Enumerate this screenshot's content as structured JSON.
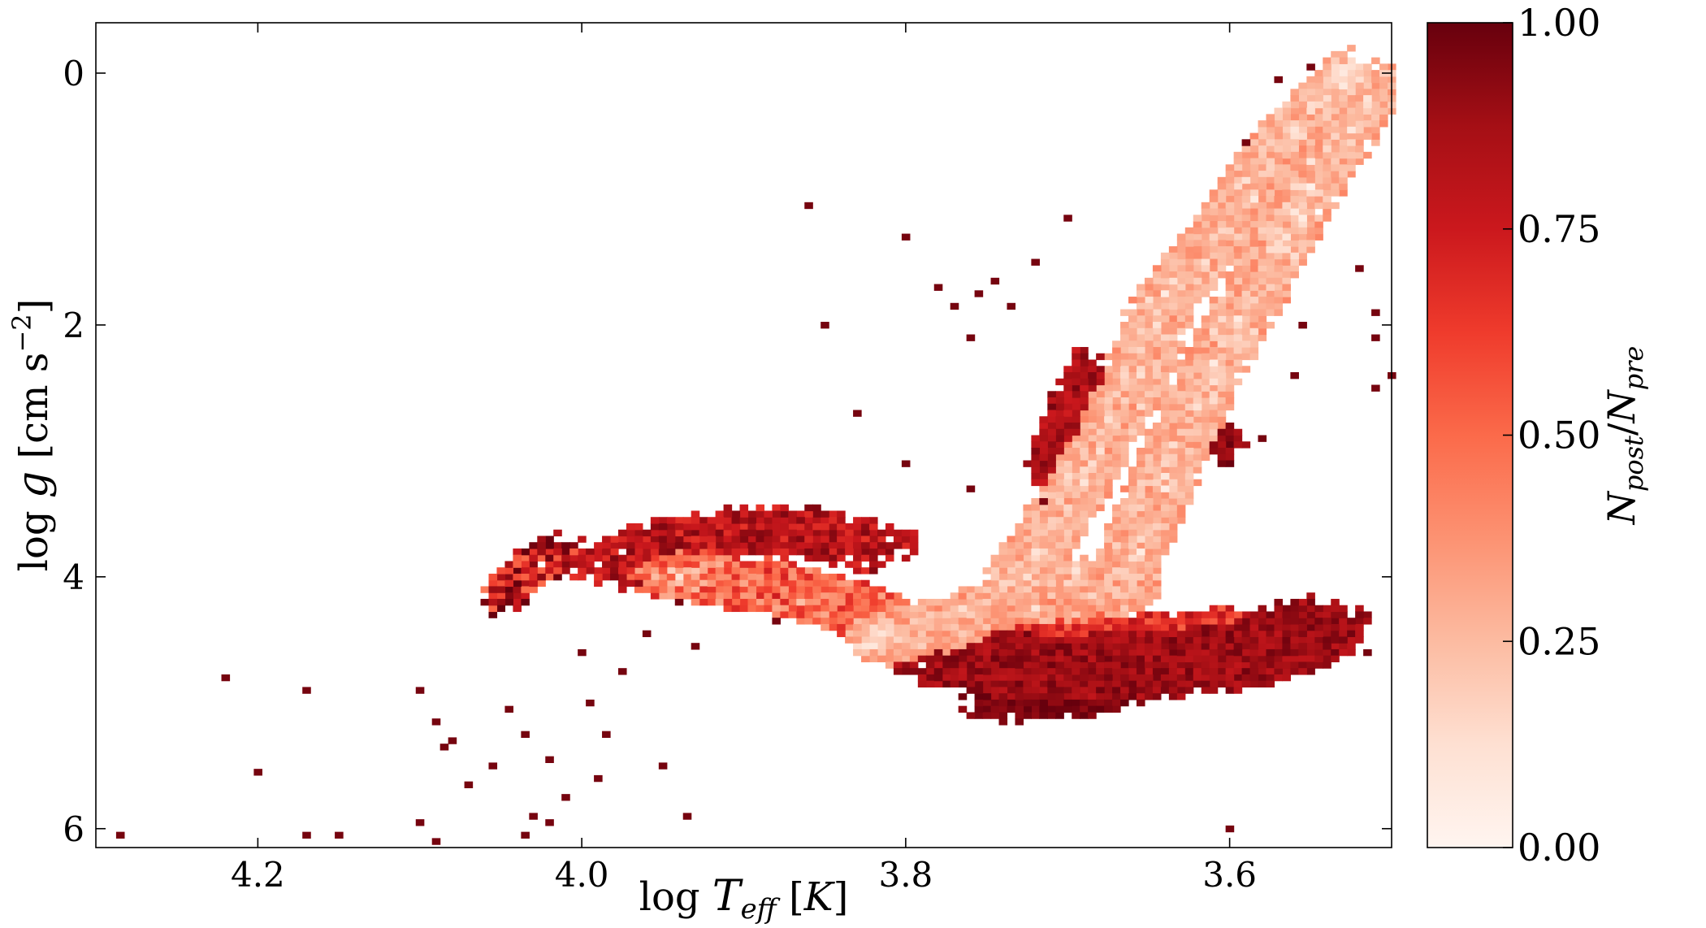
{
  "chart_data": {
    "type": "heatmap",
    "title": "",
    "xlabel_parts": [
      "log ",
      "T",
      "eff",
      " [",
      "K",
      "]"
    ],
    "ylabel_parts": [
      "log ",
      "g",
      " [cm  s",
      "−2",
      "]"
    ],
    "colorbar_label_parts": [
      "N",
      "post",
      "/",
      "N",
      "pre"
    ],
    "x_axis": {
      "range": [
        4.3,
        3.5
      ],
      "inverted": true,
      "ticks": [
        4.2,
        4.0,
        3.8,
        3.6
      ],
      "tick_labels": [
        "4.2",
        "4.0",
        "3.8",
        "3.6"
      ]
    },
    "y_axis": {
      "range": [
        -0.4,
        6.15
      ],
      "inverted": true,
      "ticks": [
        0,
        2,
        4,
        6
      ],
      "tick_labels": [
        "0",
        "2",
        "4",
        "6"
      ]
    },
    "colorbar": {
      "range": [
        0.0,
        1.0
      ],
      "ticks": [
        0.0,
        0.25,
        0.5,
        0.75,
        1.0
      ],
      "tick_labels": [
        "0.00",
        "0.25",
        "0.50",
        "0.75",
        "1.00"
      ],
      "colormap": [
        "#fff5f0",
        "#fee0d2",
        "#fcbba1",
        "#fc9272",
        "#fb6a4a",
        "#ef3b2c",
        "#cb181d",
        "#a50f15",
        "#67000d"
      ]
    },
    "grid": false,
    "bin_size": {
      "log_teff": 0.005,
      "log_g": 0.05
    },
    "regions": [
      {
        "name": "",
        "path": [
          [
            3.525,
            0.0
          ],
          [
            3.565,
            0.5
          ],
          [
            3.6,
            1.2
          ],
          [
            3.64,
            1.8
          ],
          [
            3.66,
            2.5
          ],
          [
            3.69,
            3.2
          ],
          [
            3.71,
            3.6
          ],
          [
            3.73,
            4.0
          ],
          [
            3.67,
            4.05
          ],
          [
            3.65,
            3.5
          ],
          [
            3.62,
            2.6
          ],
          [
            3.58,
            1.6
          ],
          [
            3.55,
            0.9
          ],
          [
            3.51,
            0.1
          ]
        ],
        "width": [
          0.02,
          0.2
        ],
        "value_mean": 0.08,
        "value_spread": 0.09,
        "density": 0.8
      },
      {
        "name": "",
        "path": [
          [
            3.82,
            4.5
          ],
          [
            3.78,
            4.4
          ],
          [
            3.74,
            4.2
          ],
          [
            3.7,
            4.15
          ],
          [
            3.67,
            4.1
          ],
          [
            3.66,
            4.05
          ]
        ],
        "width": [
          0.02,
          0.16
        ],
        "value_mean": 0.1,
        "value_spread": 0.1,
        "density": 0.9
      },
      {
        "name": "",
        "path": [
          [
            3.94,
            4.0
          ],
          [
            3.88,
            4.08
          ],
          [
            3.83,
            4.25
          ],
          [
            3.81,
            4.4
          ]
        ],
        "width": [
          0.03,
          0.2
        ],
        "value_mean": 0.3,
        "value_spread": 0.2,
        "density": 0.85
      },
      {
        "name": "",
        "path": [
          [
            3.98,
            3.9
          ],
          [
            3.94,
            3.7
          ],
          [
            3.9,
            3.65
          ],
          [
            3.86,
            3.65
          ],
          [
            3.82,
            3.75
          ]
        ],
        "width": [
          0.03,
          0.2
        ],
        "value_mean": 0.8,
        "value_spread": 0.15,
        "density": 0.5
      },
      {
        "name": "",
        "path": [
          [
            3.69,
            2.4
          ],
          [
            3.7,
            2.8
          ],
          [
            3.71,
            3.1
          ],
          [
            3.7,
            3.4
          ]
        ],
        "width": [
          0.015,
          0.22
        ],
        "value_mean": 0.85,
        "value_spread": 0.12,
        "density": 0.55
      },
      {
        "name": "",
        "path": [
          [
            3.77,
            4.65
          ],
          [
            3.72,
            4.7
          ],
          [
            3.66,
            4.7
          ],
          [
            3.6,
            4.65
          ],
          [
            3.57,
            4.55
          ],
          [
            3.55,
            4.4
          ]
        ],
        "width": [
          0.04,
          0.25
        ],
        "value_mean": 0.88,
        "value_spread": 0.1,
        "density": 0.9
      },
      {
        "name": "",
        "path": [
          [
            3.8,
            4.55
          ],
          [
            3.74,
            4.45
          ],
          [
            3.68,
            4.4
          ],
          [
            3.63,
            4.4
          ],
          [
            3.59,
            4.35
          ]
        ],
        "width": [
          0.025,
          0.1
        ],
        "value_mean": 0.68,
        "value_spread": 0.16,
        "density": 0.9
      },
      {
        "name": "",
        "path": [
          [
            3.74,
            5.0
          ],
          [
            3.7,
            4.95
          ],
          [
            3.67,
            4.9
          ]
        ],
        "width": [
          0.03,
          0.12
        ],
        "value_mean": 0.96,
        "value_spread": 0.05,
        "density": 0.6
      },
      {
        "name": "",
        "path": [
          [
            4.05,
            4.2
          ],
          [
            4.03,
            3.9
          ],
          [
            4.01,
            3.8
          ]
        ],
        "width": [
          0.015,
          0.12
        ],
        "value_mean": 0.75,
        "value_spread": 0.3,
        "density": 0.45
      },
      {
        "name": "",
        "path": [
          [
            3.61,
            2.8
          ],
          [
            3.6,
            3.0
          ]
        ],
        "width": [
          0.01,
          0.15
        ],
        "value_mean": 0.92,
        "value_spread": 0.08,
        "density": 0.45
      }
    ],
    "scatter_cells": [
      [
        4.285,
        6.05
      ],
      [
        4.22,
        4.8
      ],
      [
        4.2,
        5.55
      ],
      [
        4.17,
        4.9
      ],
      [
        4.15,
        6.05
      ],
      [
        4.17,
        6.05
      ],
      [
        4.1,
        4.9
      ],
      [
        4.09,
        5.15
      ],
      [
        4.08,
        5.3
      ],
      [
        4.085,
        5.35
      ],
      [
        4.07,
        5.65
      ],
      [
        4.1,
        5.95
      ],
      [
        4.09,
        6.1
      ],
      [
        4.055,
        5.5
      ],
      [
        4.045,
        5.05
      ],
      [
        4.035,
        5.25
      ],
      [
        4.02,
        5.45
      ],
      [
        3.995,
        5.0
      ],
      [
        3.985,
        5.25
      ],
      [
        4.03,
        5.9
      ],
      [
        4.02,
        5.95
      ],
      [
        4.035,
        6.05
      ],
      [
        4.01,
        5.75
      ],
      [
        3.99,
        5.6
      ],
      [
        3.95,
        5.5
      ],
      [
        3.935,
        5.9
      ],
      [
        4.0,
        4.6
      ],
      [
        3.975,
        4.75
      ],
      [
        3.86,
        1.05
      ],
      [
        3.85,
        2.0
      ],
      [
        3.8,
        1.3
      ],
      [
        3.78,
        1.7
      ],
      [
        3.77,
        1.85
      ],
      [
        3.76,
        2.1
      ],
      [
        3.755,
        1.75
      ],
      [
        3.745,
        1.65
      ],
      [
        3.735,
        1.85
      ],
      [
        3.72,
        1.5
      ],
      [
        3.7,
        1.15
      ],
      [
        3.83,
        2.7
      ],
      [
        3.8,
        3.1
      ],
      [
        3.76,
        3.3
      ],
      [
        3.62,
        1.8
      ],
      [
        3.6,
        1.4
      ],
      [
        3.59,
        1.1
      ],
      [
        3.58,
        1.0
      ],
      [
        3.57,
        0.05
      ],
      [
        3.55,
        -0.05
      ],
      [
        3.52,
        1.55
      ],
      [
        3.51,
        1.9
      ],
      [
        3.51,
        2.1
      ],
      [
        3.5,
        2.4
      ],
      [
        3.51,
        2.5
      ],
      [
        3.515,
        4.6
      ],
      [
        3.53,
        4.5
      ],
      [
        3.555,
        2.0
      ],
      [
        3.56,
        2.4
      ],
      [
        3.58,
        2.9
      ],
      [
        3.6,
        6.0
      ],
      [
        3.59,
        0.55
      ],
      [
        3.62,
        1.25
      ],
      [
        3.63,
        1.65
      ],
      [
        3.65,
        3.3
      ],
      [
        3.64,
        3.6
      ],
      [
        3.575,
        4.3
      ],
      [
        3.595,
        4.8
      ],
      [
        3.88,
        4.35
      ],
      [
        3.93,
        4.55
      ],
      [
        3.96,
        4.45
      ],
      [
        3.94,
        4.2
      ],
      [
        3.885,
        3.55
      ],
      [
        3.86,
        3.5
      ]
    ]
  }
}
